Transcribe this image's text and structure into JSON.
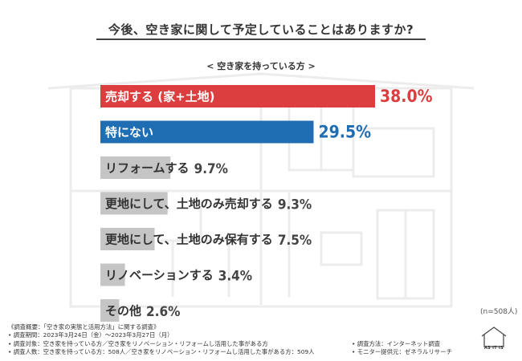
{
  "header": {
    "title": "今後、空き家に関して予定していることはありますか?",
    "subtitle": "< 空き家を持っている方 >",
    "sample_size": "(n=508人)"
  },
  "chart_data": {
    "type": "bar",
    "orientation": "horizontal",
    "title": "今後、空き家に関して予定していることはありますか?",
    "subtitle": "< 空き家を持っている方 >",
    "unit": "%",
    "xlim": [
      0,
      38.0
    ],
    "categories": [
      "売却する (家+土地)",
      "特にない",
      "リフォームする",
      "更地にして、土地のみ売却する",
      "更地にして、土地のみ保有する",
      "リノベーションする",
      "その他"
    ],
    "values": [
      38.0,
      29.5,
      9.7,
      9.3,
      7.5,
      3.4,
      2.6
    ],
    "value_labels": [
      "38.0%",
      "29.5%",
      "9.7%",
      "9.3%",
      "7.5%",
      "3.4%",
      "2.6%"
    ],
    "colors": [
      "#dc3d3f",
      "#1f6db3",
      "#c5c5c5",
      "#c5c5c5",
      "#c5c5c5",
      "#c5c5c5",
      "#c5c5c5"
    ],
    "value_colors": [
      "#dc3d3f",
      "#1f6db3",
      "#444444",
      "#444444",
      "#444444",
      "#444444",
      "#444444"
    ],
    "label_colors": [
      "#ffffff",
      "#ffffff",
      "#333333",
      "#333333",
      "#333333",
      "#333333",
      "#333333"
    ]
  },
  "notes": {
    "heading": "《調査概要：「空き家の実態と活用方法」に関する調査》",
    "period": "• 調査期間：2023年3月24日（金）〜2023年3月27日（月）",
    "method": "• 調査方法：インターネット調査",
    "target": "• 調査対象：空き家を持っている方／空き家をリノベーション・リフォームし活用した事がある方",
    "count": "• 調査人数：空き家を持っている方：508人／空き家をリノベーション・リフォームし活用した事がある方：509人",
    "provider": "• モニター提供元：ゼネラルリサーチ"
  },
  "logo": {
    "text": "AS IT IS"
  },
  "theme": {
    "background_art": "#ececec",
    "accent_red": "#dc3d3f",
    "accent_blue": "#1f6db3",
    "neutral_bar": "#c5c5c5"
  }
}
